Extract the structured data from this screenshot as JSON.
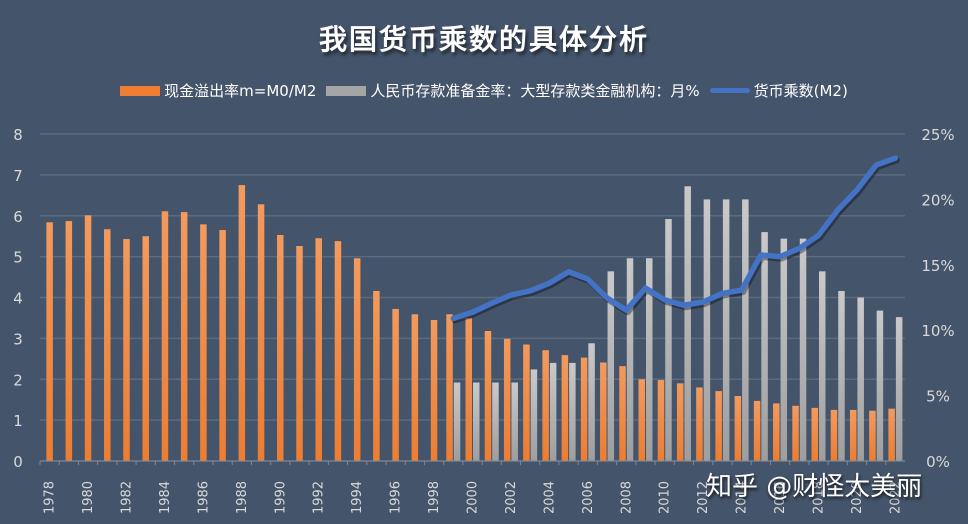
{
  "watermark": "知乎 @财怪大美丽",
  "colors": {
    "background": "#44546A",
    "cash_ratio": "#ED7D31",
    "reserve_ratio": "#A5A5A5",
    "multiplier": "#4472C4",
    "grid": "#5A6A7F"
  },
  "chart_data": {
    "type": "bar",
    "title": "我国货币乘数的具体分析",
    "xlabel": "",
    "ylabel": "",
    "legend_position": "top",
    "grid": true,
    "categories": [
      "1978",
      "1979",
      "1980",
      "1981",
      "1982",
      "1983",
      "1984",
      "1985",
      "1986",
      "1987",
      "1988",
      "1989",
      "1990",
      "1991",
      "1992",
      "1993",
      "1994",
      "1995",
      "1996",
      "1997",
      "1998",
      "1999",
      "2000",
      "2001",
      "2002",
      "2003",
      "2004",
      "2005",
      "2006",
      "2007",
      "2008",
      "2009",
      "2010",
      "2011",
      "2012",
      "2013",
      "2014",
      "2015",
      "2016",
      "2017",
      "2018",
      "2019",
      "2020",
      "2021",
      "2022"
    ],
    "x_tick_labels": [
      "1978",
      "1980",
      "1982",
      "1984",
      "1986",
      "1988",
      "1990",
      "1992",
      "1994",
      "1996",
      "1998",
      "2000",
      "2002",
      "2004",
      "2006",
      "2008",
      "2010",
      "2012",
      "2014",
      "2016",
      "2018",
      "2020",
      "2022"
    ],
    "y_left": {
      "ylim": [
        0,
        8
      ],
      "ticks": [
        "0",
        "1",
        "2",
        "3",
        "4",
        "5",
        "6",
        "7",
        "8"
      ]
    },
    "y_right": {
      "ylim": [
        0,
        25
      ],
      "ticks": [
        "0%",
        "5%",
        "10%",
        "15%",
        "20%",
        "25%"
      ]
    },
    "series": [
      {
        "name": "现金溢出率m=M0/M2",
        "type": "bar",
        "axis": "left",
        "values": [
          5.84,
          5.87,
          6.01,
          5.67,
          5.43,
          5.5,
          6.11,
          6.09,
          5.79,
          5.65,
          6.75,
          6.28,
          5.53,
          5.26,
          5.45,
          5.38,
          4.96,
          4.16,
          3.72,
          3.59,
          3.45,
          3.59,
          3.49,
          3.18,
          2.99,
          2.85,
          2.71,
          2.59,
          2.53,
          2.41,
          2.32,
          2.0,
          1.98,
          1.9,
          1.8,
          1.71,
          1.59,
          1.47,
          1.41,
          1.35,
          1.3,
          1.25,
          1.25,
          1.23,
          1.28
        ]
      },
      {
        "name": "人民币存款准备金率：大型存款类金融机构：月%",
        "type": "bar",
        "axis": "right",
        "values": [
          null,
          null,
          null,
          null,
          null,
          null,
          null,
          null,
          null,
          null,
          null,
          null,
          null,
          null,
          null,
          null,
          null,
          null,
          null,
          null,
          null,
          6.0,
          6.0,
          6.0,
          6.0,
          7.0,
          7.5,
          7.5,
          9.0,
          14.5,
          15.5,
          15.5,
          18.5,
          21.0,
          20.0,
          20.0,
          20.0,
          17.5,
          17.0,
          17.0,
          14.5,
          13.0,
          12.5,
          11.5,
          11.0
        ]
      },
      {
        "name": "货币乘数(M2)",
        "type": "line",
        "axis": "left",
        "values": [
          null,
          null,
          null,
          null,
          null,
          null,
          null,
          null,
          null,
          null,
          null,
          null,
          null,
          null,
          null,
          null,
          null,
          null,
          null,
          null,
          null,
          3.49,
          3.64,
          3.86,
          4.06,
          4.16,
          4.35,
          4.63,
          4.45,
          3.99,
          3.69,
          4.23,
          3.94,
          3.81,
          3.89,
          4.1,
          4.18,
          5.04,
          5.0,
          5.2,
          5.52,
          6.14,
          6.63,
          7.24,
          7.41
        ]
      }
    ]
  }
}
